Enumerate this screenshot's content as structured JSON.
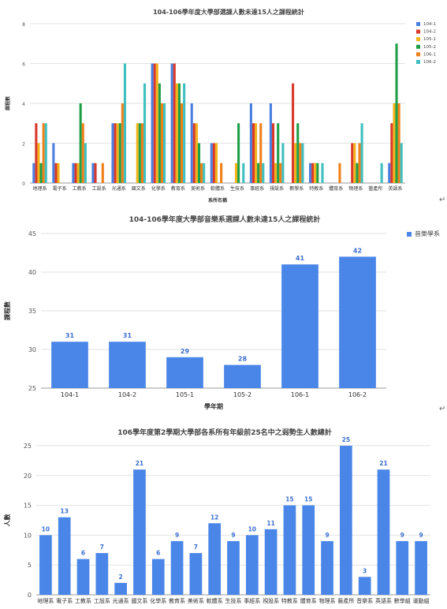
{
  "chart_data": [
    {
      "type": "bar",
      "title": "104-106學年度大學部選課人數未達15人之課程統計",
      "xlabel": "系所名稱",
      "ylabel": "課程數",
      "ylim": [
        0,
        8
      ],
      "yticks": [
        0,
        2,
        4,
        6,
        8
      ],
      "grid": true,
      "legend": "right",
      "categories": [
        "地理系",
        "電子系",
        "工教系",
        "工設系",
        "光通系",
        "國文系",
        "化學系",
        "教育系",
        "美術系",
        "軟體系",
        "生技系",
        "事經系",
        "視設系",
        "數學系",
        "特教系",
        "體育系",
        "物理系",
        "藝產所",
        "英語系"
      ],
      "series": [
        {
          "name": "104-1",
          "color": "#4a7fe0",
          "values": [
            1,
            2,
            1,
            1,
            3,
            0,
            6,
            6,
            4,
            2,
            0,
            4,
            4,
            0,
            1,
            0,
            0,
            0,
            1
          ]
        },
        {
          "name": "104-2",
          "color": "#d9392b",
          "values": [
            3,
            1,
            1,
            1,
            3,
            0,
            6,
            6,
            3,
            2,
            0,
            3,
            3,
            5,
            1,
            0,
            2,
            0,
            3
          ]
        },
        {
          "name": "105-1",
          "color": "#f2b31a",
          "values": [
            2,
            1,
            1,
            0,
            3,
            3,
            6,
            5,
            3,
            2,
            1,
            3,
            1,
            2,
            1,
            0,
            2,
            0,
            4
          ]
        },
        {
          "name": "105-2",
          "color": "#1f9e48",
          "values": [
            1,
            0,
            4,
            0,
            3,
            3,
            5,
            5,
            2,
            0,
            3,
            1,
            3,
            3,
            1,
            0,
            1,
            0,
            7
          ]
        },
        {
          "name": "106-1",
          "color": "#f07f18",
          "values": [
            3,
            0,
            3,
            1,
            4,
            3,
            4,
            4,
            1,
            1,
            0,
            3,
            1,
            2,
            0,
            1,
            2,
            0,
            4
          ]
        },
        {
          "name": "106-2",
          "color": "#3fbfbf",
          "values": [
            3,
            0,
            2,
            0,
            6,
            5,
            4,
            5,
            1,
            0,
            1,
            1,
            2,
            2,
            1,
            0,
            3,
            1,
            2
          ]
        }
      ]
    },
    {
      "type": "bar",
      "title": "104-106學年度大學部音樂系選課人數未達15人之課程統計",
      "xlabel": "學年期",
      "ylabel": "課程數",
      "ylim": [
        25,
        45
      ],
      "yticks": [
        25,
        30,
        35,
        40,
        45
      ],
      "grid": true,
      "legend": "top-right",
      "categories": [
        "104-1",
        "104-2",
        "105-1",
        "105-2",
        "106-1",
        "106-2"
      ],
      "series": [
        {
          "name": "音樂學系",
          "color": "#4a86e8",
          "values": [
            31,
            31,
            29,
            28,
            41,
            42
          ]
        }
      ]
    },
    {
      "type": "bar",
      "title": "106學年度第2學期大學部各系所有年級前25名中之弱勢生人數總計",
      "xlabel": "",
      "ylabel": "人數",
      "ylim": [
        0,
        25
      ],
      "yticks": [
        0,
        5,
        10,
        15,
        20,
        25
      ],
      "grid": true,
      "legend": "none",
      "categories": [
        "地理系",
        "電子系",
        "工教系",
        "工設系",
        "光通系",
        "國文系",
        "化學系",
        "教育系",
        "美術系",
        "軟體系",
        "生技系",
        "事經系",
        "視設系",
        "特教系",
        "體育系",
        "物理系",
        "藝產所",
        "音樂系",
        "英語系",
        "數學組",
        "運動組"
      ],
      "series": [
        {
          "name": "",
          "color": "#4a86e8",
          "values": [
            10,
            13,
            6,
            7,
            2,
            21,
            6,
            9,
            7,
            12,
            9,
            10,
            11,
            15,
            15,
            9,
            25,
            3,
            21,
            9,
            9
          ]
        }
      ]
    }
  ]
}
